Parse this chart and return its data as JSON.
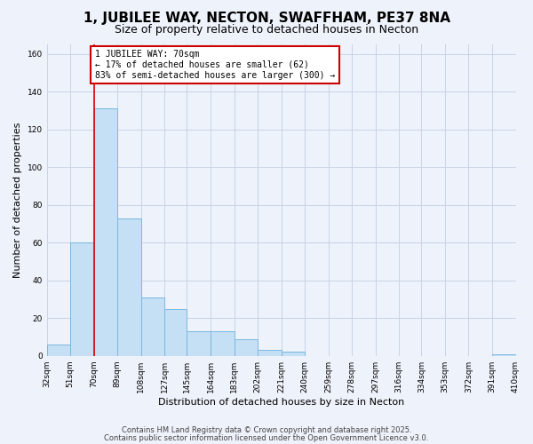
{
  "title": "1, JUBILEE WAY, NECTON, SWAFFHAM, PE37 8NA",
  "subtitle": "Size of property relative to detached houses in Necton",
  "xlabel": "Distribution of detached houses by size in Necton",
  "ylabel": "Number of detached properties",
  "bar_color": "#c5dff5",
  "bar_edge_color": "#7ab8e0",
  "grid_color": "#c8d4e8",
  "background_color": "#eef2fa",
  "plot_bg_color": "#ffffff",
  "bins": [
    32,
    51,
    70,
    89,
    108,
    127,
    145,
    164,
    183,
    202,
    221,
    240,
    259,
    278,
    297,
    316,
    334,
    353,
    372,
    391,
    410
  ],
  "counts": [
    6,
    60,
    131,
    73,
    31,
    25,
    13,
    13,
    9,
    3,
    2,
    0,
    0,
    0,
    0,
    0,
    0,
    0,
    0,
    1
  ],
  "property_size": 70,
  "annotation_text": "1 JUBILEE WAY: 70sqm\n← 17% of detached houses are smaller (62)\n83% of semi-detached houses are larger (300) →",
  "annotation_box_color": "#ffffff",
  "annotation_box_edge": "#cc0000",
  "red_line_color": "#dd0000",
  "ylim": [
    0,
    165
  ],
  "yticks": [
    0,
    20,
    40,
    60,
    80,
    100,
    120,
    140,
    160
  ],
  "footer1": "Contains HM Land Registry data © Crown copyright and database right 2025.",
  "footer2": "Contains public sector information licensed under the Open Government Licence v3.0.",
  "title_fontsize": 11,
  "subtitle_fontsize": 9,
  "tick_fontsize": 6.5,
  "label_fontsize": 8,
  "annot_fontsize": 7
}
